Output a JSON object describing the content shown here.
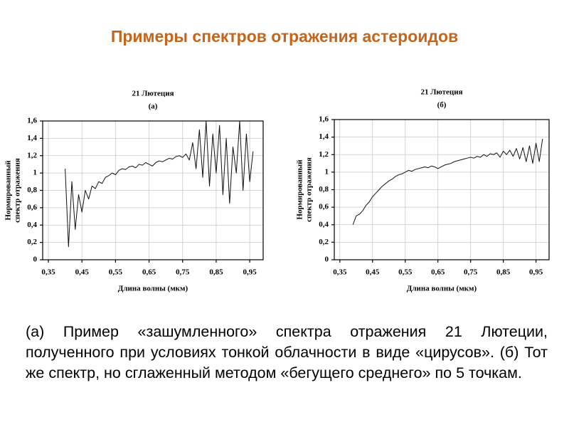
{
  "title": "Примеры спектров отражения астероидов",
  "caption": "(а) Пример «зашумленного» спектра отражения 21 Лютеции, полученного при условиях тонкой облачности в виде «цирусов». (б) Тот же спектр, но сглаженный методом «бегущего среднего» по 5 точкам.",
  "chart_data": [
    {
      "type": "line",
      "title": "21 Лютеция",
      "subtitle": "(а)",
      "xlabel": "Длина волны (мкм)",
      "ylabel": [
        "Нормированный",
        "спектр отражения"
      ],
      "color": "#111111",
      "grid": true,
      "xlim": [
        0.333,
        0.99
      ],
      "ylim": [
        0,
        1.6
      ],
      "xticks": [
        {
          "value": 0.35,
          "label": "0,35"
        },
        {
          "value": 0.45,
          "label": "0,45"
        },
        {
          "value": 0.55,
          "label": "0,55"
        },
        {
          "value": 0.65,
          "label": "0,65"
        },
        {
          "value": 0.75,
          "label": "0,75"
        },
        {
          "value": 0.85,
          "label": "0,85"
        },
        {
          "value": 0.95,
          "label": "0,95"
        }
      ],
      "yticks": [
        0,
        {
          "value": 0.2,
          "label": "0,2"
        },
        {
          "value": 0.4,
          "label": "0,4"
        },
        {
          "value": 0.6,
          "label": "0,6"
        },
        {
          "value": 0.8,
          "label": "0,8"
        },
        1,
        {
          "value": 1.2,
          "label": "1,2"
        },
        {
          "value": 1.4,
          "label": "1,4"
        },
        {
          "value": 1.6,
          "label": "1,6"
        }
      ],
      "x": [
        0.4,
        0.41,
        0.42,
        0.43,
        0.44,
        0.45,
        0.46,
        0.47,
        0.48,
        0.49,
        0.5,
        0.51,
        0.52,
        0.53,
        0.54,
        0.55,
        0.56,
        0.57,
        0.58,
        0.59,
        0.6,
        0.61,
        0.62,
        0.63,
        0.64,
        0.65,
        0.66,
        0.67,
        0.68,
        0.69,
        0.7,
        0.71,
        0.72,
        0.73,
        0.74,
        0.75,
        0.76,
        0.77,
        0.78,
        0.79,
        0.8,
        0.81,
        0.82,
        0.83,
        0.84,
        0.85,
        0.86,
        0.87,
        0.88,
        0.89,
        0.9,
        0.91,
        0.92,
        0.93,
        0.94,
        0.95,
        0.96
      ],
      "values": [
        1.05,
        0.15,
        0.9,
        0.35,
        0.75,
        0.55,
        0.8,
        0.7,
        0.85,
        0.82,
        0.9,
        0.88,
        0.95,
        0.97,
        1.0,
        0.98,
        1.03,
        1.05,
        1.04,
        1.07,
        1.08,
        1.06,
        1.1,
        1.09,
        1.12,
        1.1,
        1.08,
        1.12,
        1.14,
        1.13,
        1.15,
        1.17,
        1.16,
        1.19,
        1.2,
        1.18,
        1.22,
        1.15,
        1.35,
        1.05,
        1.5,
        0.95,
        1.6,
        0.85,
        1.45,
        1.0,
        1.55,
        0.75,
        1.4,
        0.65,
        1.3,
        1.0,
        1.6,
        0.8,
        1.45,
        0.9,
        1.25
      ]
    },
    {
      "type": "line",
      "title": "21 Лютеция",
      "subtitle": "(б)",
      "xlabel": "Длина волны (мкм)",
      "ylabel": [
        "Нормированный",
        "спектр отражения"
      ],
      "color": "#111111",
      "grid": true,
      "xlim": [
        0.333,
        0.99
      ],
      "ylim": [
        0,
        1.6
      ],
      "xticks": [
        {
          "value": 0.35,
          "label": "0,35"
        },
        {
          "value": 0.45,
          "label": "0,45"
        },
        {
          "value": 0.55,
          "label": "0,55"
        },
        {
          "value": 0.65,
          "label": "0,65"
        },
        {
          "value": 0.75,
          "label": "0,75"
        },
        {
          "value": 0.85,
          "label": "0,85"
        },
        {
          "value": 0.95,
          "label": "0,95"
        }
      ],
      "yticks": [
        0,
        {
          "value": 0.2,
          "label": "0,2"
        },
        {
          "value": 0.4,
          "label": "0,4"
        },
        {
          "value": 0.6,
          "label": "0,6"
        },
        {
          "value": 0.8,
          "label": "0,8"
        },
        1,
        {
          "value": 1.2,
          "label": "1,2"
        },
        {
          "value": 1.4,
          "label": "1,4"
        },
        {
          "value": 1.6,
          "label": "1,6"
        }
      ],
      "x": [
        0.39,
        0.4,
        0.41,
        0.42,
        0.43,
        0.44,
        0.45,
        0.46,
        0.47,
        0.48,
        0.49,
        0.5,
        0.51,
        0.52,
        0.53,
        0.54,
        0.55,
        0.56,
        0.57,
        0.58,
        0.59,
        0.6,
        0.61,
        0.62,
        0.63,
        0.64,
        0.65,
        0.66,
        0.67,
        0.68,
        0.69,
        0.7,
        0.71,
        0.72,
        0.73,
        0.74,
        0.75,
        0.76,
        0.77,
        0.78,
        0.79,
        0.8,
        0.81,
        0.82,
        0.83,
        0.84,
        0.85,
        0.86,
        0.87,
        0.88,
        0.89,
        0.9,
        0.91,
        0.92,
        0.93,
        0.94,
        0.95,
        0.96,
        0.97
      ],
      "values": [
        0.4,
        0.5,
        0.52,
        0.56,
        0.62,
        0.66,
        0.72,
        0.76,
        0.8,
        0.84,
        0.87,
        0.9,
        0.92,
        0.95,
        0.97,
        0.98,
        1.0,
        1.02,
        1.01,
        1.03,
        1.04,
        1.05,
        1.06,
        1.05,
        1.07,
        1.06,
        1.04,
        1.06,
        1.08,
        1.09,
        1.1,
        1.12,
        1.13,
        1.14,
        1.15,
        1.16,
        1.17,
        1.16,
        1.18,
        1.17,
        1.2,
        1.18,
        1.21,
        1.2,
        1.22,
        1.17,
        1.24,
        1.2,
        1.25,
        1.18,
        1.27,
        1.15,
        1.28,
        1.12,
        1.3,
        1.1,
        1.33,
        1.12,
        1.38
      ]
    }
  ]
}
